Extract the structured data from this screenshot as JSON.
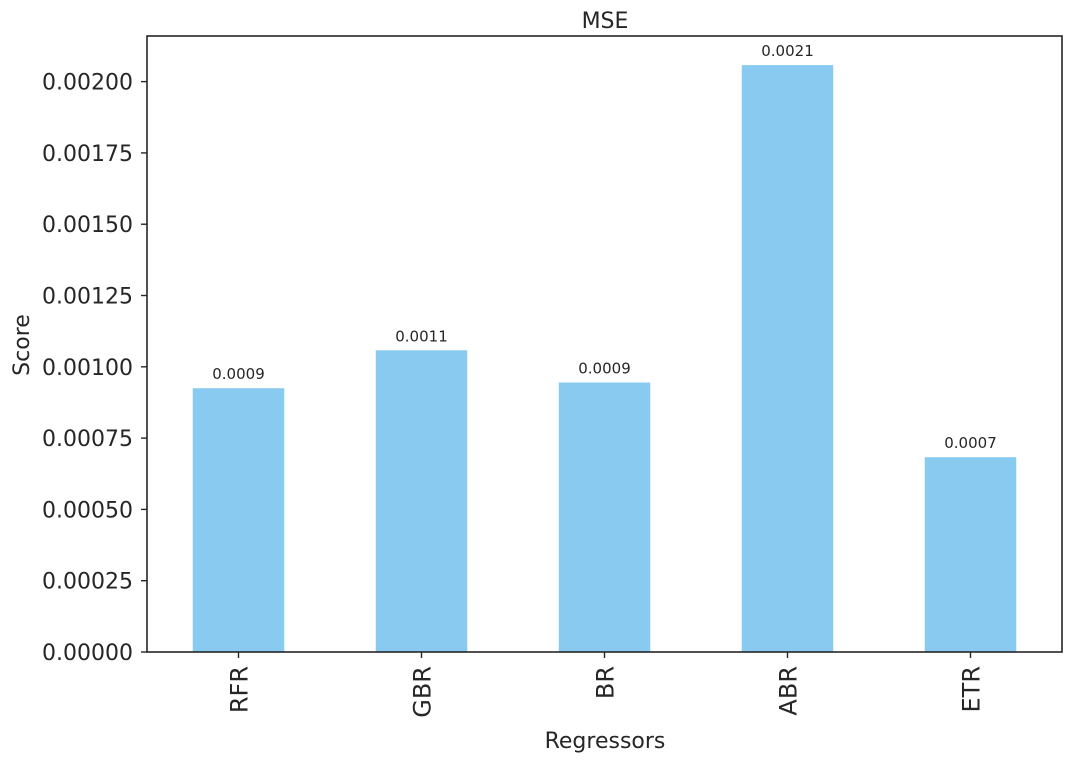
{
  "chart_data": {
    "type": "bar",
    "title": "MSE",
    "xlabel": "Regressors",
    "ylabel": "Score",
    "categories": [
      "RFR",
      "GBR",
      "BR",
      "ABR",
      "ETR"
    ],
    "values": [
      0.000925,
      0.001058,
      0.000945,
      0.002058,
      0.000683
    ],
    "data_labels": [
      "0.0009",
      "0.0011",
      "0.0009",
      "0.0021",
      "0.0007"
    ],
    "ylim": [
      0,
      0.00216
    ],
    "yticks": [
      0,
      0.00025,
      0.0005,
      0.00075,
      0.001,
      0.00125,
      0.0015,
      0.00175,
      0.002
    ],
    "ytick_labels": [
      "0.00000",
      "0.00025",
      "0.00050",
      "0.00075",
      "0.00100",
      "0.00125",
      "0.00150",
      "0.00175",
      "0.00200"
    ],
    "bar_color": "#89CBF0",
    "axis_color": "#262626",
    "grid": false,
    "legend": "none"
  }
}
